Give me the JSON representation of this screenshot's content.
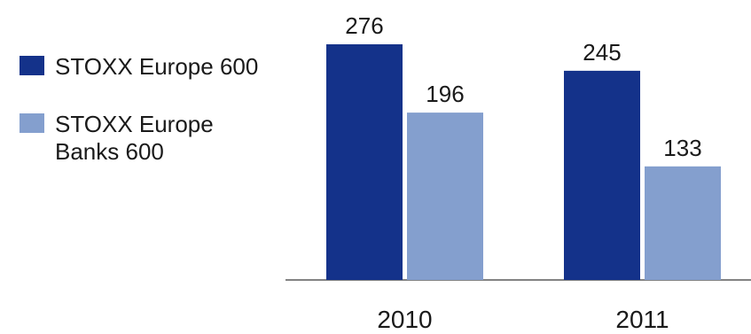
{
  "chart_data": {
    "type": "bar",
    "categories": [
      "2010",
      "2011"
    ],
    "series": [
      {
        "name": "STOXX Europe 600",
        "values": [
          276,
          245
        ],
        "color": "#14328a"
      },
      {
        "name": "STOXX Europe Banks 600",
        "values": [
          196,
          133
        ],
        "color": "#849fce"
      }
    ],
    "data_labels": [
      [
        "276",
        "245"
      ],
      [
        "196",
        "133"
      ]
    ],
    "title": "",
    "xlabel": "",
    "ylabel": "",
    "ylim": [
      0,
      276
    ],
    "grid": false,
    "legend": "left"
  }
}
